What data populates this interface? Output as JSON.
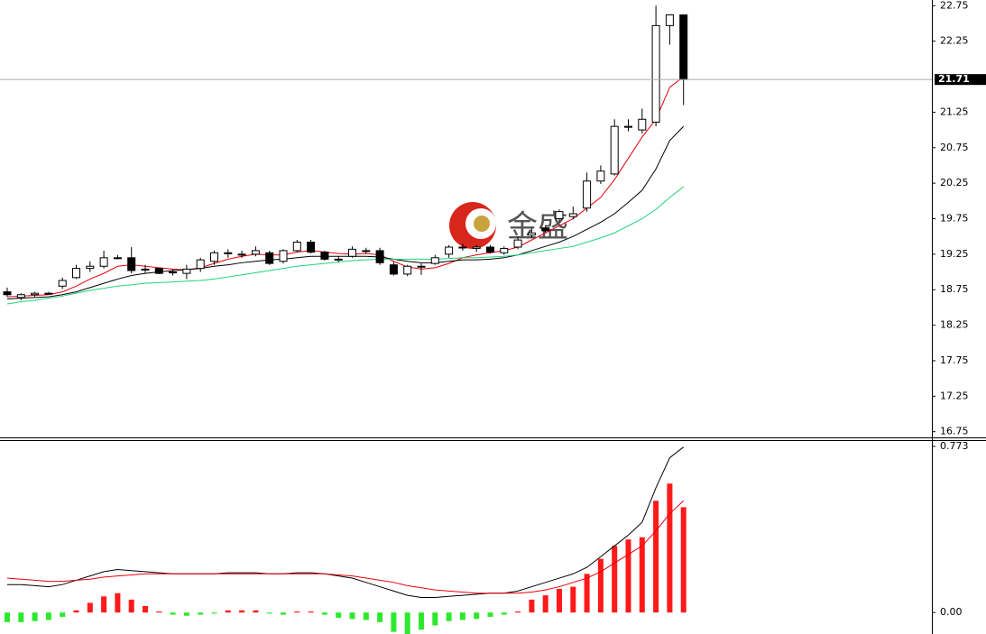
{
  "chart_data": [
    {
      "type": "candlestick",
      "open": [
        18.72,
        18.64,
        18.68,
        18.7,
        18.8,
        18.92,
        19.05,
        19.08,
        19.2,
        19.2,
        19.03,
        19.05,
        19.0,
        18.98,
        19.05,
        19.15,
        19.26,
        19.25,
        19.25,
        19.27,
        19.15,
        19.3,
        19.42,
        19.28,
        19.18,
        19.22,
        19.3,
        19.3,
        19.1,
        18.97,
        19.08,
        19.12,
        19.25,
        19.35,
        19.33,
        19.35,
        19.27,
        19.35,
        19.52,
        19.62,
        19.75,
        19.78,
        19.9,
        20.28,
        20.38,
        21.04,
        21.0,
        21.11,
        22.47,
        22.62
      ],
      "high": [
        18.78,
        18.7,
        18.72,
        18.72,
        18.92,
        19.1,
        19.15,
        19.3,
        19.24,
        19.35,
        19.1,
        19.06,
        19.04,
        19.1,
        19.2,
        19.3,
        19.32,
        19.3,
        19.36,
        19.3,
        19.32,
        19.45,
        19.45,
        19.3,
        19.22,
        19.36,
        19.34,
        19.34,
        19.14,
        19.1,
        19.12,
        19.24,
        19.38,
        19.4,
        19.38,
        19.38,
        19.36,
        19.5,
        19.62,
        19.66,
        19.88,
        19.92,
        20.4,
        20.5,
        21.15,
        21.15,
        21.3,
        22.75,
        22.62,
        22.62
      ],
      "low": [
        18.65,
        18.6,
        18.65,
        18.68,
        18.76,
        18.9,
        19.0,
        19.05,
        19.18,
        18.98,
        18.98,
        18.97,
        18.95,
        18.9,
        19.0,
        19.1,
        19.2,
        19.2,
        19.22,
        19.1,
        19.12,
        19.28,
        19.26,
        19.16,
        19.14,
        19.2,
        19.26,
        19.1,
        18.95,
        18.94,
        18.96,
        19.1,
        19.2,
        19.3,
        19.28,
        19.26,
        19.24,
        19.32,
        19.48,
        19.56,
        19.7,
        19.74,
        19.85,
        20.24,
        20.36,
        20.98,
        20.95,
        21.05,
        22.2,
        21.35
      ],
      "close": [
        18.68,
        18.68,
        18.7,
        18.7,
        18.88,
        19.05,
        19.08,
        19.2,
        19.2,
        19.02,
        19.04,
        18.98,
        19.0,
        19.04,
        19.17,
        19.27,
        19.27,
        19.25,
        19.3,
        19.12,
        19.3,
        19.42,
        19.28,
        19.18,
        19.18,
        19.32,
        19.3,
        19.13,
        18.97,
        19.08,
        19.08,
        19.2,
        19.35,
        19.35,
        19.35,
        19.28,
        19.33,
        19.45,
        19.55,
        19.58,
        19.85,
        19.82,
        20.28,
        20.42,
        21.05,
        21.05,
        21.15,
        22.47,
        22.62,
        21.71
      ],
      "up_color": "#ffffff",
      "down_color": "#000000",
      "edge_color": "#000000",
      "series": [
        {
          "color": "#e8000b",
          "values": [
            18.65,
            18.66,
            18.67,
            18.68,
            18.72,
            18.8,
            18.9,
            18.98,
            19.08,
            19.1,
            19.08,
            19.06,
            19.04,
            19.03,
            19.06,
            19.12,
            19.18,
            19.22,
            19.25,
            19.24,
            19.24,
            19.28,
            19.3,
            19.28,
            19.26,
            19.25,
            19.26,
            19.24,
            19.15,
            19.07,
            19.04,
            19.06,
            19.12,
            19.2,
            19.24,
            19.27,
            19.3,
            19.35,
            19.45,
            19.55,
            19.65,
            19.75,
            19.9,
            20.05,
            20.3,
            20.6,
            20.9,
            21.15,
            21.6,
            21.75
          ]
        },
        {
          "color": "#000000",
          "values": [
            18.62,
            18.63,
            18.64,
            18.65,
            18.68,
            18.72,
            18.78,
            18.84,
            18.9,
            18.95,
            18.98,
            19.0,
            19.02,
            19.03,
            19.05,
            19.08,
            19.1,
            19.13,
            19.15,
            19.17,
            19.18,
            19.2,
            19.22,
            19.22,
            19.22,
            19.22,
            19.22,
            19.21,
            19.18,
            19.15,
            19.13,
            19.13,
            19.15,
            19.17,
            19.17,
            19.18,
            19.2,
            19.24,
            19.3,
            19.36,
            19.42,
            19.5,
            19.6,
            19.7,
            19.82,
            19.98,
            20.15,
            20.45,
            20.85,
            21.05
          ]
        },
        {
          "color": "#22d37a",
          "values": [
            18.55,
            18.58,
            18.6,
            18.63,
            18.66,
            18.7,
            18.74,
            18.77,
            18.8,
            18.82,
            18.84,
            18.85,
            18.86,
            18.87,
            18.88,
            18.9,
            18.93,
            18.96,
            18.99,
            19.02,
            19.05,
            19.08,
            19.1,
            19.12,
            19.14,
            19.16,
            19.17,
            19.18,
            19.18,
            19.18,
            19.18,
            19.18,
            19.19,
            19.2,
            19.2,
            19.21,
            19.22,
            19.24,
            19.27,
            19.3,
            19.33,
            19.36,
            19.42,
            19.48,
            19.55,
            19.65,
            19.75,
            19.88,
            20.05,
            20.2
          ]
        }
      ],
      "current_price": 21.71,
      "ylim": [
        16.67,
        22.83
      ],
      "yticks": [
        16.75,
        17.25,
        17.75,
        18.25,
        18.75,
        19.25,
        19.75,
        20.25,
        20.75,
        21.25,
        22.25,
        22.75
      ],
      "watermark": "金盛"
    },
    {
      "type": "macd",
      "histogram": [
        -0.045,
        -0.045,
        -0.04,
        -0.035,
        -0.02,
        0.01,
        0.045,
        0.075,
        0.09,
        0.06,
        0.03,
        0.005,
        -0.01,
        -0.015,
        -0.01,
        -0.005,
        0.01,
        0.01,
        0.01,
        -0.005,
        -0.01,
        0.005,
        0.005,
        -0.01,
        -0.025,
        -0.03,
        -0.035,
        -0.045,
        -0.09,
        -0.1,
        -0.08,
        -0.06,
        -0.04,
        -0.035,
        -0.03,
        -0.02,
        -0.01,
        0.005,
        0.06,
        0.08,
        0.11,
        0.12,
        0.18,
        0.25,
        0.31,
        0.34,
        0.35,
        0.52,
        0.6,
        0.49
      ],
      "positive_color": "#ff1a1a",
      "negative_color": "#2ee82e",
      "series": [
        {
          "color": "#000000",
          "values": [
            0.13,
            0.13,
            0.125,
            0.12,
            0.13,
            0.15,
            0.17,
            0.19,
            0.2,
            0.195,
            0.19,
            0.185,
            0.18,
            0.18,
            0.18,
            0.18,
            0.185,
            0.185,
            0.185,
            0.18,
            0.18,
            0.185,
            0.185,
            0.18,
            0.17,
            0.16,
            0.14,
            0.12,
            0.1,
            0.08,
            0.07,
            0.07,
            0.075,
            0.08,
            0.085,
            0.09,
            0.09,
            0.1,
            0.12,
            0.14,
            0.16,
            0.18,
            0.21,
            0.26,
            0.31,
            0.36,
            0.42,
            0.58,
            0.72,
            0.77
          ]
        },
        {
          "color": "#e8000b",
          "values": [
            0.16,
            0.155,
            0.15,
            0.145,
            0.145,
            0.15,
            0.155,
            0.165,
            0.17,
            0.175,
            0.18,
            0.18,
            0.18,
            0.18,
            0.18,
            0.18,
            0.18,
            0.18,
            0.18,
            0.18,
            0.18,
            0.18,
            0.18,
            0.18,
            0.175,
            0.17,
            0.16,
            0.15,
            0.14,
            0.125,
            0.115,
            0.105,
            0.1,
            0.095,
            0.09,
            0.09,
            0.09,
            0.09,
            0.095,
            0.105,
            0.12,
            0.14,
            0.16,
            0.19,
            0.23,
            0.27,
            0.31,
            0.38,
            0.46,
            0.52
          ]
        }
      ],
      "ylim": [
        -0.1,
        0.798
      ],
      "yticks": [
        {
          "value": 0,
          "label": "0.00"
        },
        0.773
      ]
    }
  ]
}
